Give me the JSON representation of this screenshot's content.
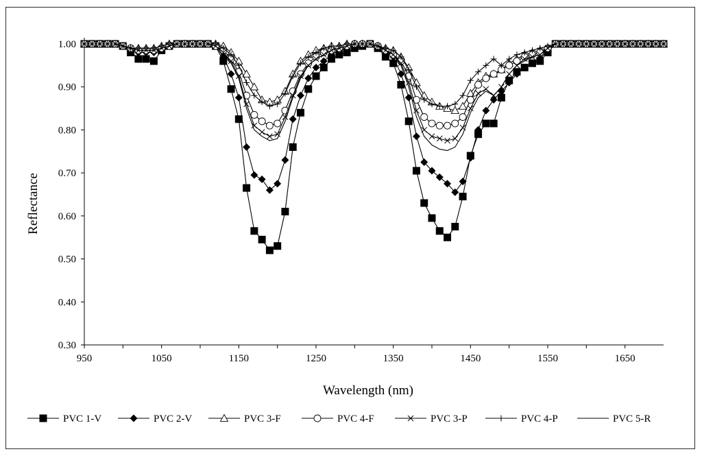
{
  "chart_data": {
    "type": "line",
    "title": "",
    "xlabel": "Wavelength (nm)",
    "ylabel": "Reflectance",
    "xlim": [
      950,
      1700
    ],
    "ylim": [
      0.3,
      1.02
    ],
    "xticks": [
      "950",
      "1050",
      "1150",
      "1250",
      "1350",
      "1450",
      "1550",
      "1650"
    ],
    "yticks": [
      "0.30",
      "0.40",
      "0.50",
      "0.60",
      "0.70",
      "0.80",
      "0.90",
      "1.00"
    ],
    "grid": false,
    "legend_position": "bottom",
    "series": [
      {
        "name": "PVC 1-V",
        "marker": "filled-square",
        "x": [
          950,
          960,
          970,
          980,
          990,
          1000,
          1010,
          1020,
          1030,
          1040,
          1050,
          1060,
          1070,
          1080,
          1090,
          1100,
          1110,
          1120,
          1130,
          1140,
          1150,
          1160,
          1170,
          1180,
          1190,
          1200,
          1210,
          1220,
          1230,
          1240,
          1250,
          1260,
          1270,
          1280,
          1290,
          1300,
          1310,
          1320,
          1330,
          1340,
          1350,
          1360,
          1370,
          1380,
          1390,
          1400,
          1410,
          1420,
          1430,
          1440,
          1450,
          1460,
          1470,
          1480,
          1490,
          1500,
          1510,
          1520,
          1530,
          1540,
          1550,
          1560,
          1570,
          1580,
          1590,
          1600,
          1610,
          1620,
          1630,
          1640,
          1650,
          1660,
          1670,
          1680,
          1690,
          1700
        ],
        "y": [
          1.0,
          1.0,
          1.0,
          1.0,
          1.0,
          0.995,
          0.98,
          0.965,
          0.965,
          0.96,
          0.985,
          0.995,
          1.0,
          1.0,
          1.0,
          1.0,
          1.0,
          0.995,
          0.96,
          0.895,
          0.825,
          0.665,
          0.565,
          0.545,
          0.52,
          0.53,
          0.61,
          0.76,
          0.84,
          0.895,
          0.925,
          0.945,
          0.965,
          0.975,
          0.98,
          0.99,
          0.995,
          1.0,
          0.99,
          0.97,
          0.955,
          0.905,
          0.82,
          0.705,
          0.63,
          0.595,
          0.565,
          0.55,
          0.575,
          0.645,
          0.74,
          0.79,
          0.815,
          0.815,
          0.875,
          0.915,
          0.935,
          0.945,
          0.955,
          0.96,
          0.98,
          1.0,
          1.0,
          1.0,
          1.0,
          1.0,
          1.0,
          1.0,
          1.0,
          1.0,
          1.0,
          1.0,
          1.0,
          1.0,
          1.0,
          1.0
        ]
      },
      {
        "name": "PVC 2-V",
        "marker": "filled-diamond",
        "x": [
          950,
          960,
          970,
          980,
          990,
          1000,
          1010,
          1020,
          1030,
          1040,
          1050,
          1060,
          1070,
          1080,
          1090,
          1100,
          1110,
          1120,
          1130,
          1140,
          1150,
          1160,
          1170,
          1180,
          1190,
          1200,
          1210,
          1220,
          1230,
          1240,
          1250,
          1260,
          1270,
          1280,
          1290,
          1300,
          1310,
          1320,
          1330,
          1340,
          1350,
          1360,
          1370,
          1380,
          1390,
          1400,
          1410,
          1420,
          1430,
          1440,
          1450,
          1460,
          1470,
          1480,
          1490,
          1500,
          1510,
          1520,
          1530,
          1540,
          1550,
          1560,
          1570,
          1580,
          1590,
          1600,
          1610,
          1620,
          1630,
          1640,
          1650,
          1660,
          1670,
          1680,
          1690,
          1700
        ],
        "y": [
          1.0,
          1.0,
          1.0,
          1.0,
          1.0,
          0.995,
          0.99,
          0.98,
          0.98,
          0.98,
          0.99,
          0.995,
          1.0,
          1.0,
          1.0,
          1.0,
          1.0,
          0.995,
          0.97,
          0.93,
          0.875,
          0.76,
          0.695,
          0.685,
          0.66,
          0.675,
          0.73,
          0.825,
          0.88,
          0.92,
          0.945,
          0.96,
          0.975,
          0.985,
          0.99,
          0.995,
          0.995,
          1.0,
          0.995,
          0.985,
          0.97,
          0.93,
          0.875,
          0.785,
          0.725,
          0.705,
          0.69,
          0.675,
          0.655,
          0.68,
          0.735,
          0.8,
          0.845,
          0.87,
          0.89,
          0.91,
          0.93,
          0.945,
          0.955,
          0.965,
          0.985,
          1.0,
          1.0,
          1.0,
          1.0,
          1.0,
          1.0,
          1.0,
          1.0,
          1.0,
          1.0,
          1.0,
          1.0,
          1.0,
          1.0,
          1.0
        ]
      },
      {
        "name": "PVC 3-F",
        "marker": "open-triangle",
        "x": [
          950,
          960,
          970,
          980,
          990,
          1000,
          1010,
          1020,
          1030,
          1040,
          1050,
          1060,
          1070,
          1080,
          1090,
          1100,
          1110,
          1120,
          1130,
          1140,
          1150,
          1160,
          1170,
          1180,
          1190,
          1200,
          1210,
          1220,
          1230,
          1240,
          1250,
          1260,
          1270,
          1280,
          1290,
          1300,
          1310,
          1320,
          1330,
          1340,
          1350,
          1360,
          1370,
          1380,
          1390,
          1400,
          1410,
          1420,
          1430,
          1440,
          1450,
          1460,
          1470,
          1480,
          1490,
          1500,
          1510,
          1520,
          1530,
          1540,
          1550,
          1560,
          1570,
          1580,
          1590,
          1600,
          1610,
          1620,
          1630,
          1640,
          1650,
          1660,
          1670,
          1680,
          1690,
          1700
        ],
        "y": [
          1.0,
          1.0,
          1.0,
          1.0,
          1.0,
          0.995,
          0.99,
          0.99,
          0.99,
          0.99,
          0.995,
          1.0,
          1.0,
          1.0,
          1.0,
          1.0,
          1.0,
          1.0,
          0.995,
          0.98,
          0.96,
          0.93,
          0.9,
          0.87,
          0.865,
          0.87,
          0.89,
          0.93,
          0.96,
          0.975,
          0.985,
          0.99,
          0.995,
          0.995,
          1.0,
          1.0,
          1.0,
          1.0,
          0.995,
          0.99,
          0.985,
          0.97,
          0.945,
          0.91,
          0.88,
          0.865,
          0.855,
          0.85,
          0.845,
          0.855,
          0.885,
          0.91,
          0.925,
          0.93,
          0.94,
          0.955,
          0.965,
          0.975,
          0.98,
          0.985,
          0.99,
          1.0,
          1.0,
          1.0,
          1.0,
          1.0,
          1.0,
          1.0,
          1.0,
          1.0,
          1.0,
          1.0,
          1.0,
          1.0,
          1.0,
          1.0
        ]
      },
      {
        "name": "PVC 4-F",
        "marker": "open-circle",
        "x": [
          950,
          960,
          970,
          980,
          990,
          1000,
          1010,
          1020,
          1030,
          1040,
          1050,
          1060,
          1070,
          1080,
          1090,
          1100,
          1110,
          1120,
          1130,
          1140,
          1150,
          1160,
          1170,
          1180,
          1190,
          1200,
          1210,
          1220,
          1230,
          1240,
          1250,
          1260,
          1270,
          1280,
          1290,
          1300,
          1310,
          1320,
          1330,
          1340,
          1350,
          1360,
          1370,
          1380,
          1390,
          1400,
          1410,
          1420,
          1430,
          1440,
          1450,
          1460,
          1470,
          1480,
          1490,
          1500,
          1510,
          1520,
          1530,
          1540,
          1550,
          1560,
          1570,
          1580,
          1590,
          1600,
          1610,
          1620,
          1630,
          1640,
          1650,
          1660,
          1670,
          1680,
          1690,
          1700
        ],
        "y": [
          1.0,
          1.0,
          1.0,
          1.0,
          1.0,
          0.995,
          0.99,
          0.985,
          0.985,
          0.985,
          0.99,
          0.995,
          1.0,
          1.0,
          1.0,
          1.0,
          1.0,
          0.995,
          0.985,
          0.965,
          0.935,
          0.88,
          0.835,
          0.82,
          0.81,
          0.815,
          0.845,
          0.89,
          0.93,
          0.955,
          0.97,
          0.98,
          0.985,
          0.99,
          0.995,
          1.0,
          1.0,
          1.0,
          0.995,
          0.985,
          0.975,
          0.96,
          0.925,
          0.87,
          0.83,
          0.815,
          0.81,
          0.81,
          0.815,
          0.83,
          0.87,
          0.905,
          0.92,
          0.93,
          0.94,
          0.95,
          0.96,
          0.97,
          0.975,
          0.98,
          0.99,
          1.0,
          1.0,
          1.0,
          1.0,
          1.0,
          1.0,
          1.0,
          1.0,
          1.0,
          1.0,
          1.0,
          1.0,
          1.0,
          1.0,
          1.0
        ]
      },
      {
        "name": "PVC 3-P",
        "marker": "x",
        "x": [
          950,
          960,
          970,
          980,
          990,
          1000,
          1010,
          1020,
          1030,
          1040,
          1050,
          1060,
          1070,
          1080,
          1090,
          1100,
          1110,
          1120,
          1130,
          1140,
          1150,
          1160,
          1170,
          1180,
          1190,
          1200,
          1210,
          1220,
          1230,
          1240,
          1250,
          1260,
          1270,
          1280,
          1290,
          1300,
          1310,
          1320,
          1330,
          1340,
          1350,
          1360,
          1370,
          1380,
          1390,
          1400,
          1410,
          1420,
          1430,
          1440,
          1450,
          1460,
          1470,
          1480,
          1490,
          1500,
          1510,
          1520,
          1530,
          1540,
          1550,
          1560,
          1570,
          1580,
          1590,
          1600,
          1610,
          1620,
          1630,
          1640,
          1650,
          1660,
          1670,
          1680,
          1690,
          1700
        ],
        "y": [
          1.0,
          1.0,
          1.0,
          1.0,
          1.0,
          0.995,
          0.99,
          0.985,
          0.985,
          0.985,
          0.99,
          0.995,
          1.0,
          1.0,
          1.0,
          1.0,
          1.0,
          0.995,
          0.98,
          0.96,
          0.925,
          0.86,
          0.81,
          0.795,
          0.785,
          0.79,
          0.83,
          0.88,
          0.925,
          0.95,
          0.965,
          0.975,
          0.985,
          0.99,
          0.995,
          1.0,
          1.0,
          1.0,
          0.995,
          0.985,
          0.975,
          0.955,
          0.91,
          0.845,
          0.8,
          0.785,
          0.78,
          0.775,
          0.78,
          0.805,
          0.85,
          0.885,
          0.895,
          0.88,
          0.9,
          0.93,
          0.95,
          0.965,
          0.97,
          0.975,
          0.99,
          1.0,
          1.0,
          1.0,
          1.0,
          1.0,
          1.0,
          1.0,
          1.0,
          1.0,
          1.0,
          1.0,
          1.0,
          1.0,
          1.0,
          1.0
        ]
      },
      {
        "name": "PVC 4-P",
        "marker": "plus",
        "x": [
          950,
          960,
          970,
          980,
          990,
          1000,
          1010,
          1020,
          1030,
          1040,
          1050,
          1060,
          1070,
          1080,
          1090,
          1100,
          1110,
          1120,
          1130,
          1140,
          1150,
          1160,
          1170,
          1180,
          1190,
          1200,
          1210,
          1220,
          1230,
          1240,
          1250,
          1260,
          1270,
          1280,
          1290,
          1300,
          1310,
          1320,
          1330,
          1340,
          1350,
          1360,
          1370,
          1380,
          1390,
          1400,
          1410,
          1420,
          1430,
          1440,
          1450,
          1460,
          1470,
          1480,
          1490,
          1500,
          1510,
          1520,
          1530,
          1540,
          1550,
          1560,
          1570,
          1580,
          1590,
          1600,
          1610,
          1620,
          1630,
          1640,
          1650,
          1660,
          1670,
          1680,
          1690,
          1700
        ],
        "y": [
          1.0,
          1.0,
          1.0,
          1.0,
          1.0,
          0.995,
          0.99,
          0.99,
          0.99,
          0.99,
          0.995,
          1.0,
          1.0,
          1.0,
          1.0,
          1.0,
          1.0,
          1.0,
          0.99,
          0.975,
          0.95,
          0.91,
          0.88,
          0.865,
          0.855,
          0.86,
          0.885,
          0.925,
          0.955,
          0.97,
          0.98,
          0.99,
          0.995,
          0.995,
          1.0,
          1.0,
          1.0,
          1.0,
          0.995,
          0.99,
          0.985,
          0.97,
          0.94,
          0.9,
          0.87,
          0.86,
          0.855,
          0.855,
          0.86,
          0.88,
          0.915,
          0.935,
          0.95,
          0.965,
          0.95,
          0.965,
          0.975,
          0.98,
          0.985,
          0.99,
          0.995,
          1.0,
          1.0,
          1.0,
          1.0,
          1.0,
          1.0,
          1.0,
          1.0,
          1.0,
          1.0,
          1.0,
          1.0,
          1.0,
          1.0,
          1.0
        ]
      },
      {
        "name": "PVC 5-R",
        "marker": "none",
        "x": [
          950,
          960,
          970,
          980,
          990,
          1000,
          1010,
          1020,
          1030,
          1040,
          1050,
          1060,
          1070,
          1080,
          1090,
          1100,
          1110,
          1120,
          1130,
          1140,
          1150,
          1160,
          1170,
          1180,
          1190,
          1200,
          1210,
          1220,
          1230,
          1240,
          1250,
          1260,
          1270,
          1280,
          1290,
          1300,
          1310,
          1320,
          1330,
          1340,
          1350,
          1360,
          1370,
          1380,
          1390,
          1400,
          1410,
          1420,
          1430,
          1440,
          1450,
          1460,
          1470,
          1480,
          1490,
          1500,
          1510,
          1520,
          1530,
          1540,
          1550,
          1560,
          1570,
          1580,
          1590,
          1600,
          1610,
          1620,
          1630,
          1640,
          1650,
          1660,
          1670,
          1680,
          1690,
          1700
        ],
        "y": [
          1.0,
          1.0,
          1.0,
          1.0,
          1.0,
          0.995,
          0.99,
          0.985,
          0.985,
          0.985,
          0.99,
          0.995,
          1.0,
          1.0,
          1.0,
          1.0,
          1.0,
          0.995,
          0.98,
          0.955,
          0.92,
          0.85,
          0.8,
          0.785,
          0.775,
          0.78,
          0.82,
          0.875,
          0.92,
          0.95,
          0.965,
          0.975,
          0.985,
          0.99,
          0.995,
          1.0,
          1.0,
          1.0,
          0.995,
          0.985,
          0.975,
          0.95,
          0.9,
          0.83,
          0.785,
          0.765,
          0.755,
          0.752,
          0.76,
          0.79,
          0.84,
          0.875,
          0.89,
          0.88,
          0.9,
          0.93,
          0.95,
          0.96,
          0.97,
          0.975,
          0.99,
          1.0,
          1.0,
          1.0,
          1.0,
          1.0,
          1.0,
          1.0,
          1.0,
          1.0,
          1.0,
          1.0,
          1.0,
          1.0,
          1.0,
          1.0
        ]
      }
    ]
  }
}
